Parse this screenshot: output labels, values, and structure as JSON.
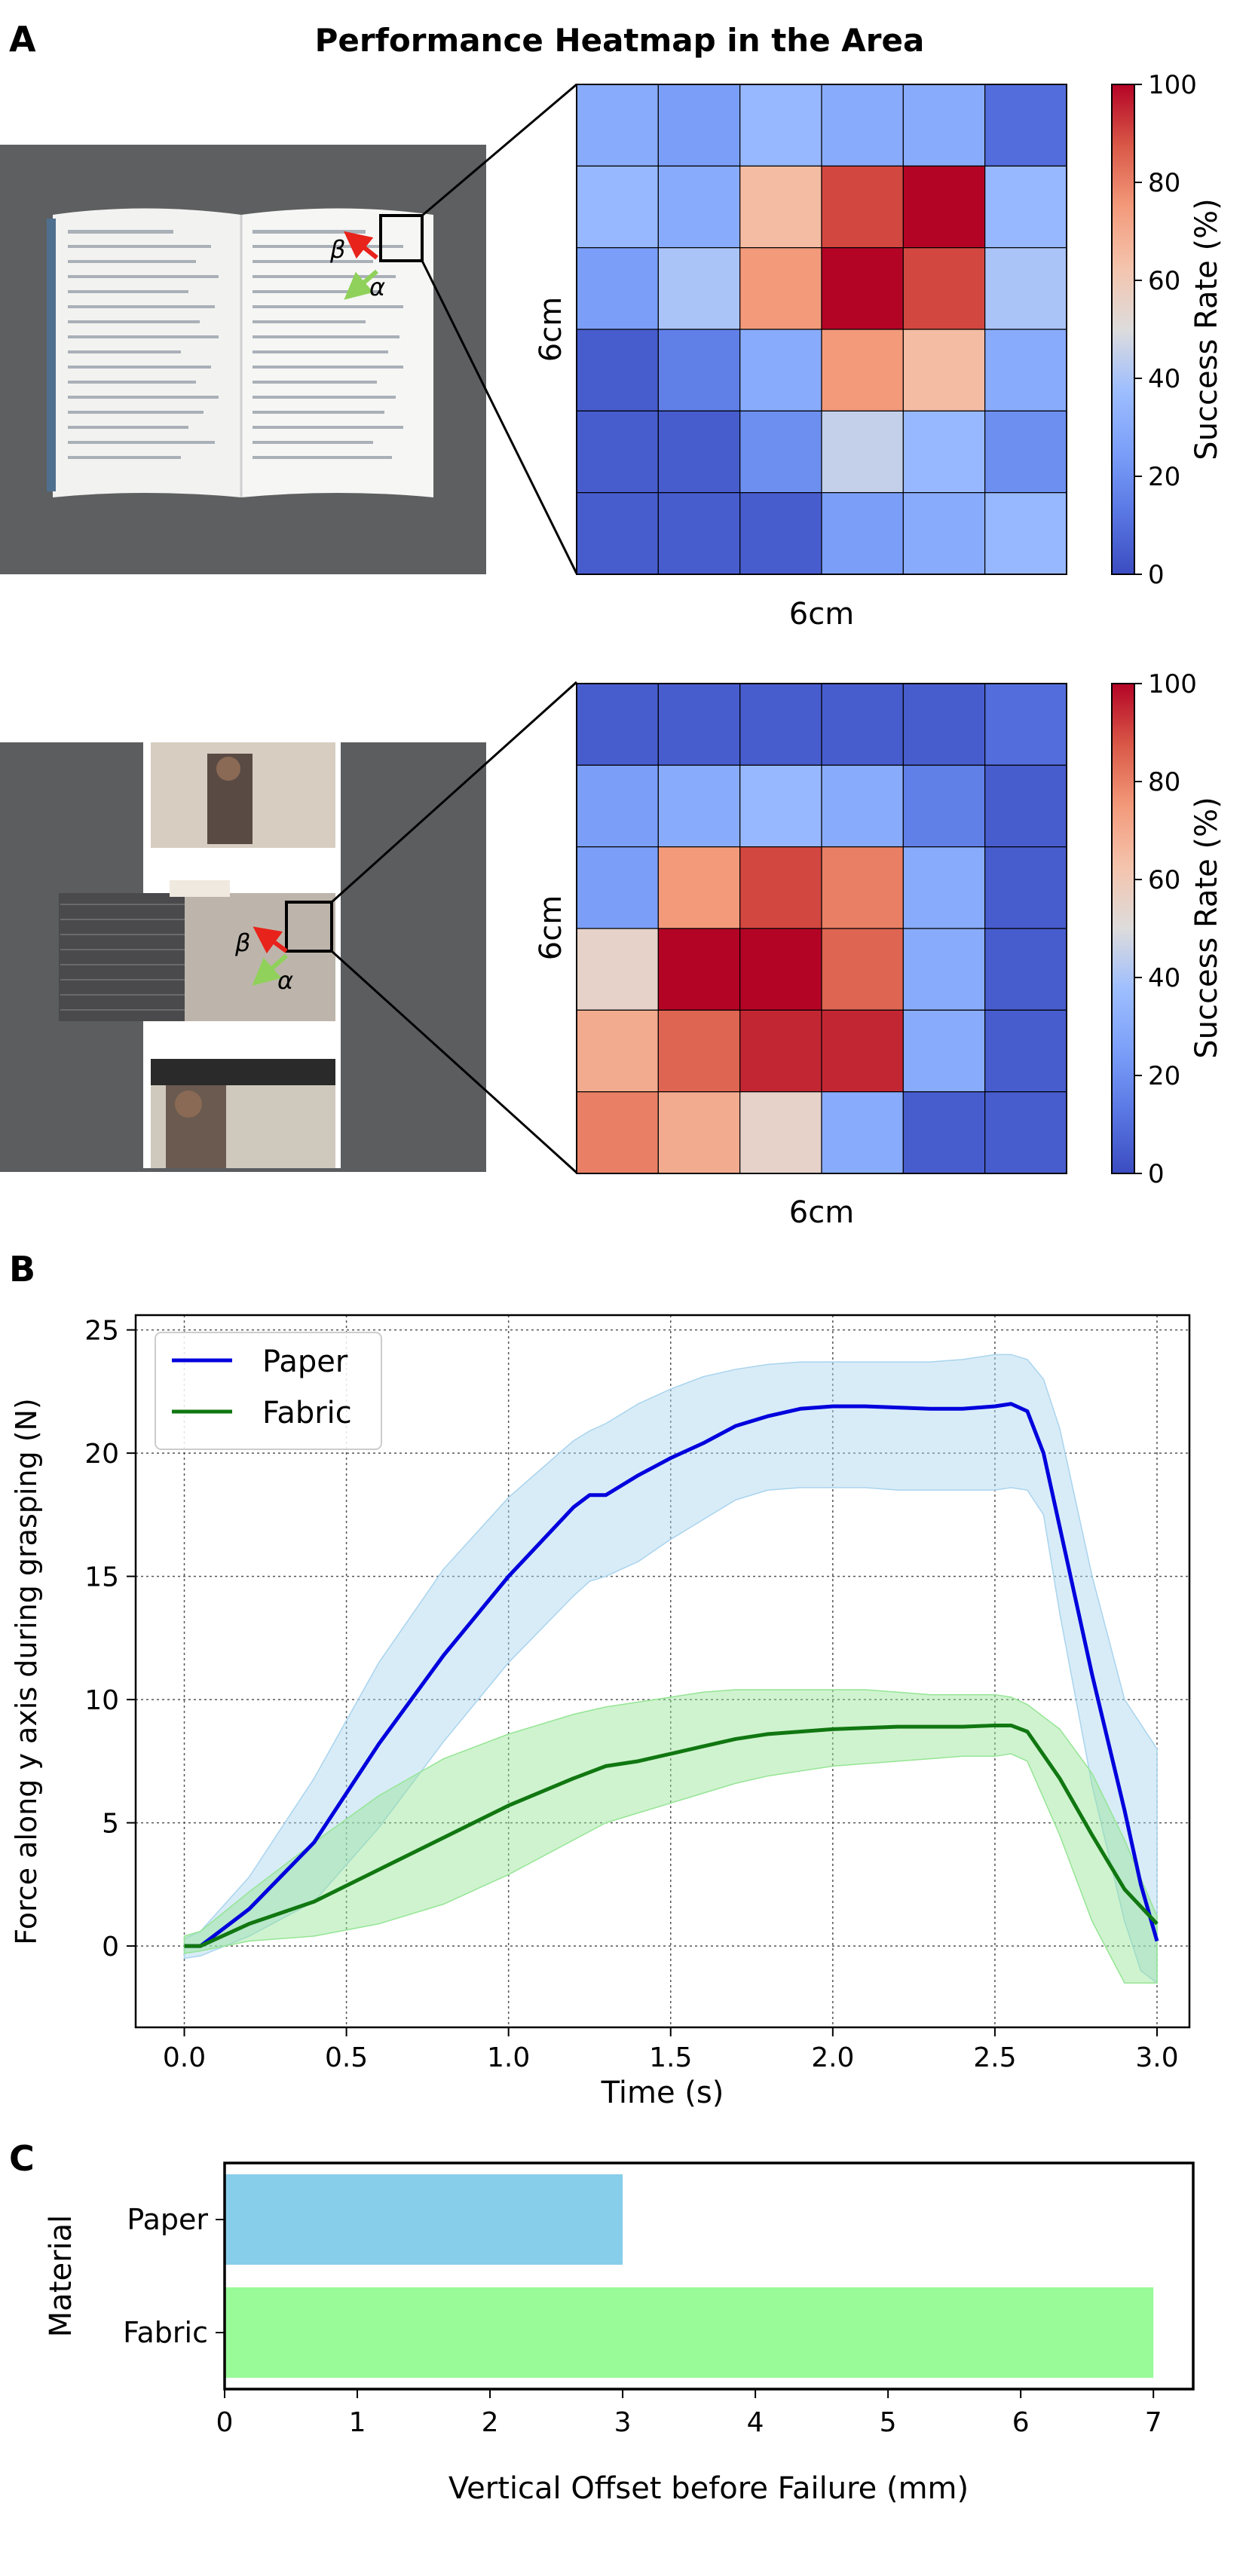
{
  "panel_labels": {
    "a": "A",
    "b": "B",
    "c": "C"
  },
  "heatmap_title": "Performance Heatmap in the Area",
  "photos": {
    "top": {
      "beta": "β",
      "alpha": "α"
    },
    "bottom": {
      "beta": "β",
      "alpha": "α"
    }
  },
  "colors": {
    "paper_line": "#0000dd",
    "paper_band": "#a9d4ee",
    "fabric_line": "#117711",
    "fabric_band": "#95e595",
    "bar_paper": "#87ceeb",
    "bar_fabric": "#98fb98",
    "arrow_beta": "#e8231b",
    "arrow_alpha": "#8fd15a"
  },
  "chart_data": [
    {
      "type": "heatmap",
      "title": "Performance Heatmap in the Area",
      "xlabel": "6cm",
      "ylabel": "6cm",
      "colorbar_label": "Success Rate (%)",
      "colorbar_ticks": [
        "0",
        "20",
        "40",
        "60",
        "80",
        "100"
      ],
      "range": [
        0,
        100
      ],
      "colormap": "coolwarm",
      "values": [
        [
          30,
          25,
          35,
          30,
          30,
          10
        ],
        [
          35,
          30,
          65,
          90,
          100,
          35
        ],
        [
          25,
          40,
          75,
          100,
          90,
          40
        ],
        [
          5,
          15,
          30,
          75,
          65,
          30
        ],
        [
          5,
          5,
          20,
          45,
          35,
          20
        ],
        [
          5,
          5,
          5,
          25,
          30,
          35
        ]
      ]
    },
    {
      "type": "heatmap",
      "xlabel": "6cm",
      "ylabel": "6cm",
      "colorbar_label": "Success Rate (%)",
      "colorbar_ticks": [
        "0",
        "20",
        "40",
        "60",
        "80",
        "100"
      ],
      "range": [
        0,
        100
      ],
      "colormap": "coolwarm",
      "values": [
        [
          5,
          5,
          5,
          5,
          5,
          10
        ],
        [
          25,
          30,
          35,
          30,
          15,
          5
        ],
        [
          25,
          75,
          90,
          80,
          30,
          5
        ],
        [
          55,
          100,
          100,
          85,
          30,
          5
        ],
        [
          70,
          85,
          95,
          95,
          30,
          5
        ],
        [
          80,
          70,
          55,
          30,
          5,
          5
        ]
      ]
    },
    {
      "type": "line",
      "xlabel": "Time (s)",
      "ylabel": "Force along y axis during grasping (N)",
      "xlim": [
        -0.15,
        3.1
      ],
      "ylim": [
        -3.3,
        25.6
      ],
      "xticks": [
        "0.0",
        "0.5",
        "1.0",
        "1.5",
        "2.0",
        "2.5",
        "3.0"
      ],
      "yticks": [
        "0",
        "5",
        "10",
        "15",
        "20",
        "25"
      ],
      "grid": true,
      "legend_position": "top-left",
      "series": [
        {
          "name": "Paper",
          "x": [
            0,
            0.05,
            0.2,
            0.4,
            0.6,
            0.8,
            1.0,
            1.2,
            1.25,
            1.3,
            1.4,
            1.5,
            1.6,
            1.7,
            1.8,
            1.9,
            2.0,
            2.1,
            2.2,
            2.3,
            2.4,
            2.5,
            2.55,
            2.6,
            2.65,
            2.7,
            2.8,
            2.9,
            2.95,
            3.0
          ],
          "y": [
            0,
            0,
            1.5,
            4.2,
            8.2,
            11.8,
            15.0,
            17.8,
            18.3,
            18.3,
            19.1,
            19.8,
            20.4,
            21.1,
            21.5,
            21.8,
            21.9,
            21.9,
            21.85,
            21.8,
            21.8,
            21.9,
            22.0,
            21.7,
            20.0,
            17.0,
            11.0,
            5.5,
            2.5,
            0.2
          ],
          "y_upper": [
            0.3,
            0.6,
            2.8,
            6.8,
            11.5,
            15.3,
            18.2,
            20.5,
            20.9,
            21.2,
            22.0,
            22.6,
            23.1,
            23.4,
            23.6,
            23.7,
            23.7,
            23.7,
            23.7,
            23.7,
            23.8,
            24.0,
            24.0,
            23.8,
            23.0,
            21.0,
            15.0,
            10.0,
            9.0,
            8.0
          ],
          "y_lower": [
            -0.5,
            -0.4,
            0.4,
            1.8,
            4.8,
            8.3,
            11.5,
            14.2,
            14.8,
            15.0,
            15.6,
            16.5,
            17.3,
            18.1,
            18.5,
            18.6,
            18.6,
            18.6,
            18.5,
            18.5,
            18.5,
            18.5,
            18.6,
            18.5,
            17.5,
            13.5,
            6.5,
            1.0,
            -1.0,
            -1.5
          ]
        },
        {
          "name": "Fabric",
          "x": [
            0,
            0.05,
            0.2,
            0.4,
            0.6,
            0.8,
            1.0,
            1.2,
            1.3,
            1.4,
            1.5,
            1.6,
            1.7,
            1.8,
            1.9,
            2.0,
            2.1,
            2.2,
            2.3,
            2.4,
            2.5,
            2.55,
            2.6,
            2.7,
            2.8,
            2.9,
            3.0
          ],
          "y": [
            0,
            0,
            0.9,
            1.8,
            3.1,
            4.4,
            5.7,
            6.8,
            7.3,
            7.5,
            7.8,
            8.1,
            8.4,
            8.6,
            8.7,
            8.8,
            8.85,
            8.9,
            8.9,
            8.9,
            8.95,
            8.95,
            8.7,
            6.8,
            4.5,
            2.3,
            0.9
          ],
          "y_upper": [
            0.4,
            0.6,
            2.2,
            4.2,
            6.1,
            7.6,
            8.6,
            9.4,
            9.7,
            9.9,
            10.1,
            10.3,
            10.4,
            10.4,
            10.4,
            10.4,
            10.4,
            10.3,
            10.2,
            10.2,
            10.2,
            10.1,
            9.8,
            8.8,
            7.0,
            4.3,
            1.2
          ],
          "y_lower": [
            -0.3,
            -0.2,
            0.2,
            0.4,
            0.9,
            1.7,
            2.9,
            4.3,
            5.0,
            5.4,
            5.8,
            6.2,
            6.6,
            6.9,
            7.1,
            7.3,
            7.4,
            7.5,
            7.6,
            7.7,
            7.7,
            7.8,
            7.5,
            4.5,
            1.0,
            -1.5,
            -1.5
          ]
        }
      ]
    },
    {
      "type": "bar",
      "orientation": "horizontal",
      "categories": [
        "Paper",
        "Fabric"
      ],
      "values": [
        3,
        7
      ],
      "xlabel": "Vertical Offset before Failure (mm)",
      "ylabel": "Material",
      "xlim": [
        0,
        7.3
      ],
      "xticks": [
        "0",
        "1",
        "2",
        "3",
        "4",
        "5",
        "6",
        "7"
      ]
    }
  ]
}
